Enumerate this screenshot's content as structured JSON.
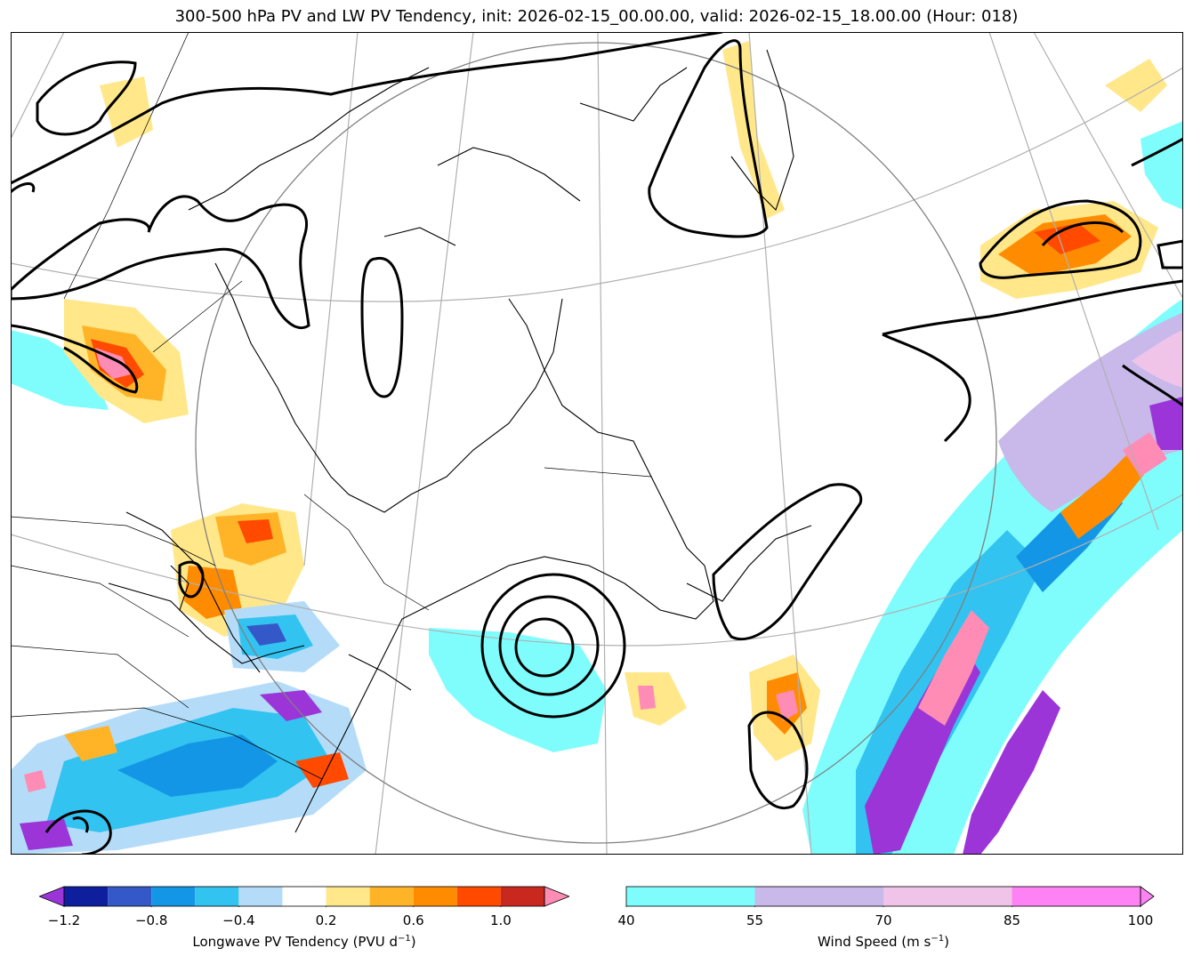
{
  "title": "300-500 hPa PV and LW PV Tendency, init: 2026-02-15_00.00.00, valid: 2026-02-15_18.00.00 (Hour: 018)",
  "colorbar_pv_tendency": {
    "label": "Longwave PV Tendency (PVU d",
    "label_exp": "−1",
    "label_end": ")",
    "extend": "both",
    "levels": [
      -1.2,
      -1.0,
      -0.8,
      -0.6,
      -0.4,
      -0.2,
      0.2,
      0.4,
      0.6,
      0.8,
      1.0,
      1.2
    ],
    "tick_labels": [
      "−1.2",
      "−0.8",
      "−0.4",
      "0.2",
      "0.6",
      "1.0"
    ],
    "tick_values": [
      -1.2,
      -0.8,
      -0.4,
      0.2,
      0.6,
      1.0
    ],
    "colors": [
      "#0d1f9c",
      "#3558c9",
      "#1496e6",
      "#32c3f0",
      "#b4dcf8",
      "#ffffff",
      "#ffe78a",
      "#ffb428",
      "#ff8c00",
      "#ff4a00",
      "#c8281e"
    ],
    "under_color": "#9b35d8",
    "over_color": "#ff8cb4"
  },
  "colorbar_wind": {
    "label": "Wind Speed (m s",
    "label_exp": "−1",
    "label_end": ")",
    "extend": "max",
    "levels": [
      40,
      55,
      70,
      85,
      100
    ],
    "tick_labels": [
      "40",
      "55",
      "70",
      "85",
      "100"
    ],
    "colors": [
      "#7ffdfd",
      "#c8b9ea",
      "#f0c4e8",
      "#ff82f5"
    ],
    "over_color": "#ff82f5"
  },
  "map": {
    "background": "#ffffff",
    "coastline_color": "#000000",
    "pv_contour_color": "#000000",
    "graticule_color": "#b0b0b0"
  }
}
